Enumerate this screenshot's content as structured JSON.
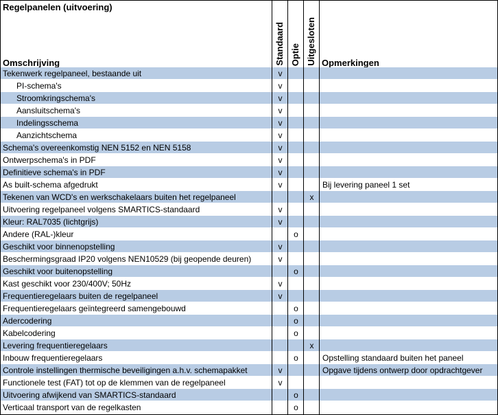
{
  "title": "Regelpanelen (uitvoering)",
  "headers": {
    "description": "Omschrijving",
    "standard": "Standaard",
    "option": "Optie",
    "excluded": "Uitgesloten",
    "remarks": "Opmerkingen"
  },
  "colors": {
    "band": "#b8cce4"
  },
  "rows": [
    {
      "description": "Tekenwerk regelpaneel, bestaande uit",
      "indent": false,
      "standard": "v",
      "option": "",
      "excluded": "",
      "remarks": ""
    },
    {
      "description": "PI-schema's",
      "indent": true,
      "standard": "v",
      "option": "",
      "excluded": "",
      "remarks": ""
    },
    {
      "description": "Stroomkringschema's",
      "indent": true,
      "standard": "v",
      "option": "",
      "excluded": "",
      "remarks": ""
    },
    {
      "description": "Aansluitschema's",
      "indent": true,
      "standard": "v",
      "option": "",
      "excluded": "",
      "remarks": ""
    },
    {
      "description": "Indelingsschema",
      "indent": true,
      "standard": "v",
      "option": "",
      "excluded": "",
      "remarks": ""
    },
    {
      "description": "Aanzichtschema",
      "indent": true,
      "standard": "v",
      "option": "",
      "excluded": "",
      "remarks": ""
    },
    {
      "description": "Schema's overeenkomstig NEN 5152 en NEN 5158",
      "indent": false,
      "standard": "v",
      "option": "",
      "excluded": "",
      "remarks": ""
    },
    {
      "description": "Ontwerpschema's in PDF",
      "indent": false,
      "standard": "v",
      "option": "",
      "excluded": "",
      "remarks": ""
    },
    {
      "description": "Definitieve schema's in PDF",
      "indent": false,
      "standard": "v",
      "option": "",
      "excluded": "",
      "remarks": ""
    },
    {
      "description": "As built-schema afgedrukt",
      "indent": false,
      "standard": "v",
      "option": "",
      "excluded": "",
      "remarks": "Bij levering paneel 1 set"
    },
    {
      "description": "Tekenen van WCD's en werkschakelaars buiten het regelpaneel",
      "indent": false,
      "standard": "",
      "option": "",
      "excluded": "x",
      "remarks": ""
    },
    {
      "description": "Uitvoering regelpaneel volgens SMARTICS-standaard",
      "indent": false,
      "standard": "v",
      "option": "",
      "excluded": "",
      "remarks": ""
    },
    {
      "description": "Kleur: RAL7035 (lichtgrijs)",
      "indent": false,
      "standard": "v",
      "option": "",
      "excluded": "",
      "remarks": ""
    },
    {
      "description": "Andere (RAL-)kleur",
      "indent": false,
      "standard": "",
      "option": "o",
      "excluded": "",
      "remarks": ""
    },
    {
      "description": "Geschikt voor binnenopstelling",
      "indent": false,
      "standard": "v",
      "option": "",
      "excluded": "",
      "remarks": ""
    },
    {
      "description": "Beschermingsgraad IP20 volgens NEN10529 (bij geopende deuren)",
      "indent": false,
      "standard": "v",
      "option": "",
      "excluded": "",
      "remarks": ""
    },
    {
      "description": "Geschikt voor buitenopstelling",
      "indent": false,
      "standard": "",
      "option": "o",
      "excluded": "",
      "remarks": ""
    },
    {
      "description": "Kast geschikt voor 230/400V; 50Hz",
      "indent": false,
      "standard": "v",
      "option": "",
      "excluded": "",
      "remarks": ""
    },
    {
      "description": "Frequentieregelaars buiten de regelpaneel",
      "indent": false,
      "standard": "v",
      "option": "",
      "excluded": "",
      "remarks": ""
    },
    {
      "description": "Frequentieregelaars geïntegreerd samengebouwd",
      "indent": false,
      "standard": "",
      "option": "o",
      "excluded": "",
      "remarks": ""
    },
    {
      "description": "Adercodering",
      "indent": false,
      "standard": "",
      "option": "o",
      "excluded": "",
      "remarks": ""
    },
    {
      "description": "Kabelcodering",
      "indent": false,
      "standard": "",
      "option": "o",
      "excluded": "",
      "remarks": ""
    },
    {
      "description": "Levering frequentieregelaars",
      "indent": false,
      "standard": "",
      "option": "",
      "excluded": "x",
      "remarks": ""
    },
    {
      "description": "Inbouw frequentieregelaars",
      "indent": false,
      "standard": "",
      "option": "o",
      "excluded": "",
      "remarks": "Opstelling standaard buiten het paneel"
    },
    {
      "description": "Controle instellingen thermische beveiligingen a.h.v. schemapakket",
      "indent": false,
      "standard": "v",
      "option": "",
      "excluded": "",
      "remarks": "Opgave tijdens ontwerp door opdrachtgever"
    },
    {
      "description": "Functionele test (FAT) tot op de klemmen van de regelpaneel",
      "indent": false,
      "standard": "v",
      "option": "",
      "excluded": "",
      "remarks": ""
    },
    {
      "description": "Uitvoering afwijkend van SMARTICS-standaard",
      "indent": false,
      "standard": "",
      "option": "o",
      "excluded": "",
      "remarks": ""
    },
    {
      "description": "Verticaal transport van de regelkasten",
      "indent": false,
      "standard": "",
      "option": "o",
      "excluded": "",
      "remarks": ""
    }
  ]
}
